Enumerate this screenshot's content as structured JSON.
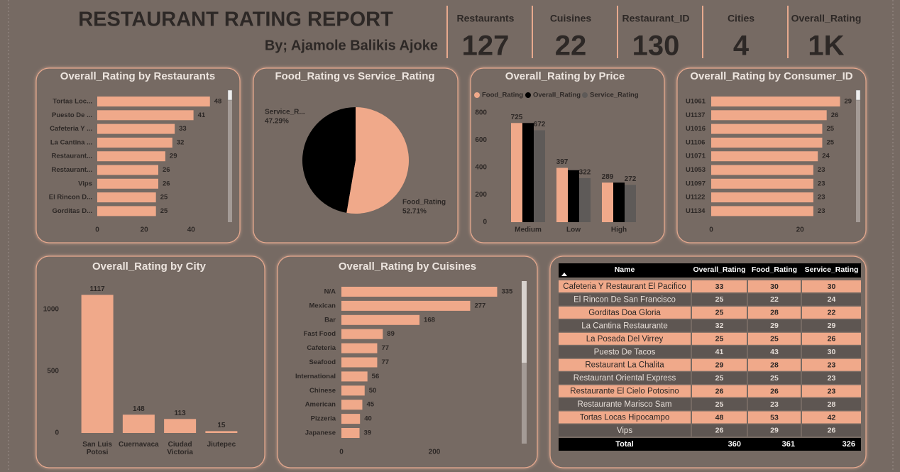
{
  "header": {
    "title": "RESTAURANT RATING REPORT",
    "subtitle": "By; Ajamole Balikis Ajoke"
  },
  "kpis": [
    {
      "label": "Restaurants",
      "value": 127
    },
    {
      "label": "Cuisines",
      "value": 22
    },
    {
      "label": "Restaurant_ID",
      "value": 130
    },
    {
      "label": "Cities",
      "value": 4
    },
    {
      "label": "Overall_Rating",
      "value": 1393,
      "value_label": "1K"
    }
  ],
  "chart_data": [
    {
      "type": "bar",
      "orientation": "horizontal",
      "title": "Overall_Rating by Restaurants",
      "categories": [
        "Tortas Loc...",
        "Puesto De ...",
        "Cafeteria Y ...",
        "La Cantina ...",
        "Restaurant...",
        "Restaurant...",
        "Vips",
        "El Rincon D...",
        "Gorditas D..."
      ],
      "values": [
        48,
        41,
        33,
        32,
        29,
        26,
        26,
        25,
        25
      ],
      "color": "#f0a98a",
      "xlim": [
        0,
        52
      ],
      "xticks": [
        0,
        20,
        40
      ]
    },
    {
      "type": "pie",
      "title": "Food_Rating vs Service_Rating",
      "categories": [
        "Service_R...",
        "Food_Rating"
      ],
      "values": [
        47.29,
        52.71
      ],
      "value_labels": [
        "47.29%",
        "52.71%"
      ],
      "colors": [
        "#000000",
        "#f0a98a"
      ]
    },
    {
      "type": "bar",
      "orientation": "vertical",
      "title": "Overall_Rating by Price",
      "categories": [
        "Medium",
        "Low",
        "High"
      ],
      "series": [
        {
          "name": "Food_Rating",
          "color": "#f0a98a",
          "values": [
            725,
            397,
            289
          ],
          "data_labels": true
        },
        {
          "name": "Overall_Rating",
          "color": "#000000",
          "values": [
            725,
            380,
            289
          ],
          "data_labels": false
        },
        {
          "name": "Service_Rating",
          "color": "#5e5a58",
          "values": [
            672,
            322,
            272
          ],
          "data_labels": true
        }
      ],
      "ylim": [
        0,
        820
      ],
      "yticks": [
        0,
        200,
        400,
        600,
        800
      ],
      "legend": "top"
    },
    {
      "type": "bar",
      "orientation": "horizontal",
      "title": "Overall_Rating by Consumer_ID",
      "categories": [
        "U1061",
        "U1137",
        "U1016",
        "U1106",
        "U1071",
        "U1053",
        "U1097",
        "U1122",
        "U1134"
      ],
      "values": [
        29,
        26,
        25,
        25,
        24,
        23,
        23,
        23,
        23
      ],
      "color": "#f0a98a",
      "xlim": [
        0,
        31
      ],
      "xticks": [
        0,
        20
      ]
    },
    {
      "type": "bar",
      "orientation": "vertical",
      "title": "Overall_Rating by City",
      "categories": [
        "San Luis Potosi",
        "Cuernavaca",
        "Ciudad Victoria",
        "Jiutepec"
      ],
      "values": [
        1117,
        148,
        113,
        15
      ],
      "color": "#f0a98a",
      "ylim": [
        0,
        1200
      ],
      "yticks": [
        0,
        500,
        1000
      ]
    },
    {
      "type": "bar",
      "orientation": "horizontal",
      "title": "Overall_Rating by Cuisines",
      "categories": [
        "N/A",
        "Mexican",
        "Bar",
        "Fast Food",
        "Cafeteria",
        "Seafood",
        "International",
        "Chinese",
        "American",
        "Pizzeria",
        "Japanese"
      ],
      "values": [
        335,
        277,
        168,
        89,
        77,
        77,
        56,
        50,
        45,
        40,
        39
      ],
      "color": "#f0a98a",
      "xlim": [
        0,
        345
      ],
      "xticks": [
        0,
        200
      ]
    }
  ],
  "table": {
    "columns": [
      "Name",
      "Overall_Rating",
      "Food_Rating",
      "Service_Rating"
    ],
    "rows": [
      [
        "Cafeteria Y Restaurant El Pacifico",
        33,
        30,
        30
      ],
      [
        "El Rincon De San Francisco",
        25,
        22,
        24
      ],
      [
        "Gorditas Doa Gloria",
        25,
        28,
        22
      ],
      [
        "La Cantina Restaurante",
        32,
        29,
        29
      ],
      [
        "La Posada Del Virrey",
        25,
        25,
        26
      ],
      [
        "Puesto De Tacos",
        41,
        43,
        30
      ],
      [
        "Restaurant La Chalita",
        29,
        28,
        23
      ],
      [
        "Restaurant Oriental Express",
        25,
        25,
        23
      ],
      [
        "Restaurante El Cielo Potosino",
        26,
        26,
        23
      ],
      [
        "Restaurante Marisco Sam",
        25,
        23,
        28
      ],
      [
        "Tortas Locas Hipocampo",
        48,
        53,
        42
      ],
      [
        "Vips",
        26,
        29,
        26
      ]
    ],
    "total": [
      "Total",
      360,
      361,
      326
    ]
  }
}
